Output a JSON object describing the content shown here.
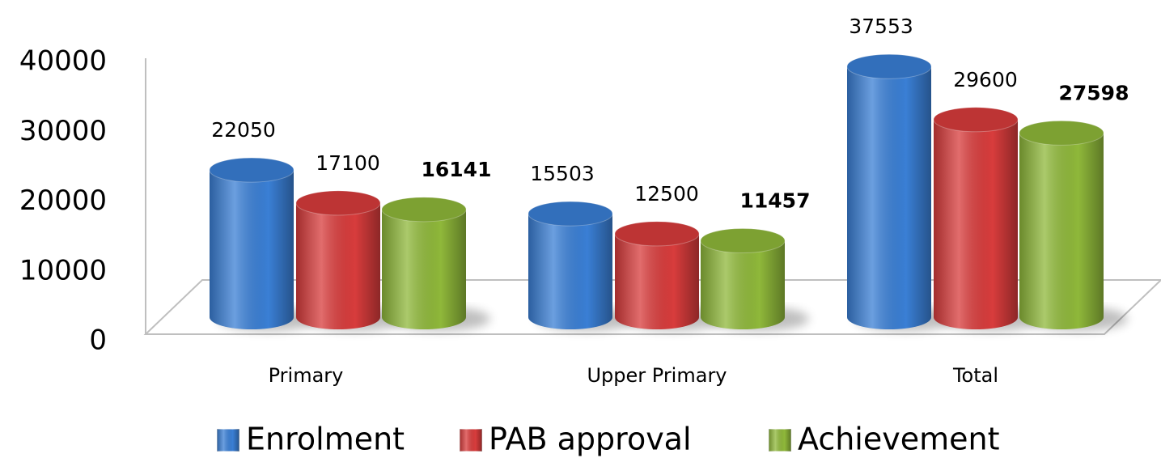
{
  "chart_data": {
    "type": "bar",
    "categories": [
      "Primary",
      "Upper Primary",
      "Total"
    ],
    "series": [
      {
        "name": "Enrolment",
        "color": "#3a7fd5",
        "values": [
          22050,
          15503,
          37553
        ]
      },
      {
        "name": "PAB approval",
        "color": "#d83c3c",
        "values": [
          17100,
          12500,
          29600
        ]
      },
      {
        "name": "Achievement",
        "color": "#8fb83a",
        "values": [
          16141,
          11457,
          27598
        ]
      }
    ],
    "ylim": [
      0,
      40000
    ],
    "yticks": [
      0,
      10000,
      20000,
      30000,
      40000
    ],
    "legend": "bottom",
    "data_labels": true
  }
}
